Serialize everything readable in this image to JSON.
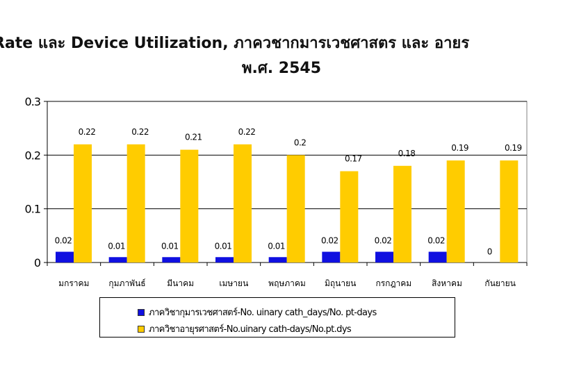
{
  "title": {
    "line1": "Rate และ Device Utilization, ภาควชากมารเวชศาสตร       และ อายร",
    "line2": "พ.ศ. 2545"
  },
  "colors": {
    "series1": "#1010e0",
    "series2": "#ffcc00"
  },
  "chart_data": {
    "type": "bar",
    "categories": [
      "มกราคม",
      "กุมภาพันธ์",
      "มีนาคม",
      "เมษายน",
      "พฤษภาคม",
      "มิถุนายน",
      "กรกฎาคม",
      "สิงหาคม",
      "กันยายน"
    ],
    "series": [
      {
        "name": "ภาควิชากุมารเวชศาสตร์-No. uinary cath_days/No. pt-days",
        "values": [
          0.02,
          0.01,
          0.01,
          0.01,
          0.01,
          0.02,
          0.02,
          0.02,
          0
        ],
        "labels": [
          "0.02",
          "0.01",
          "0.01",
          "0.01",
          "0.01",
          "0.02",
          "0.02",
          "0.02",
          "0"
        ]
      },
      {
        "name": "ภาควิชาอายุรศาสตร์-No.uinary cath-days/No.pt.dys",
        "values": [
          0.22,
          0.22,
          0.21,
          0.22,
          0.2,
          0.17,
          0.18,
          0.19,
          0.19
        ],
        "labels": [
          "0.22",
          "0.22",
          "0.21",
          "0.22",
          "0.2",
          "0.17",
          "0.18",
          "0.19",
          "0.19"
        ]
      }
    ],
    "ylim": [
      0,
      0.3
    ],
    "yticks": [
      0,
      0.1,
      0.2,
      0.3
    ],
    "ytick_labels": [
      "0",
      "0.1",
      "0.2",
      "0.3"
    ],
    "grid": true,
    "legend": "bottom"
  }
}
